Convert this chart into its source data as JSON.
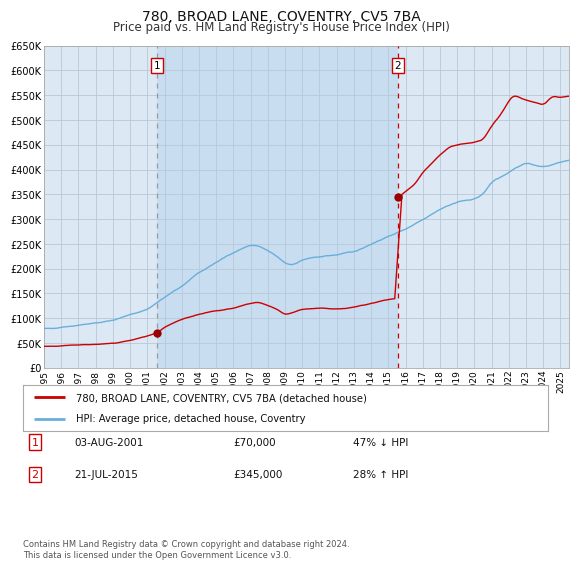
{
  "title": "780, BROAD LANE, COVENTRY, CV5 7BA",
  "subtitle": "Price paid vs. HM Land Registry's House Price Index (HPI)",
  "title_fontsize": 10,
  "subtitle_fontsize": 8.5,
  "background_color": "#ffffff",
  "plot_bg_color": "#dce9f5",
  "shaded_region_color": "#c8ddf0",
  "grid_color": "#b8c8d8",
  "ylabel_values": [
    0,
    50000,
    100000,
    150000,
    200000,
    250000,
    300000,
    350000,
    400000,
    450000,
    500000,
    550000,
    600000,
    650000
  ],
  "ylim": [
    0,
    650000
  ],
  "xlim_start": 1995.0,
  "xlim_end": 2025.5,
  "hpi_color": "#6aaedb",
  "price_color": "#cc0000",
  "marker_color": "#990000",
  "vline_color_1": "#999999",
  "vline_color_2": "#cc0000",
  "sale1_year": 2001.587,
  "sale1_price": 70000,
  "sale2_year": 2015.548,
  "sale2_price": 345000,
  "legend_label_price": "780, BROAD LANE, COVENTRY, CV5 7BA (detached house)",
  "legend_label_hpi": "HPI: Average price, detached house, Coventry",
  "table_row1": [
    "1",
    "03-AUG-2001",
    "£70,000",
    "47% ↓ HPI"
  ],
  "table_row2": [
    "2",
    "21-JUL-2015",
    "£345,000",
    "28% ↑ HPI"
  ],
  "footer": "Contains HM Land Registry data © Crown copyright and database right 2024.\nThis data is licensed under the Open Government Licence v3.0.",
  "annot1_label": "1",
  "annot2_label": "2"
}
